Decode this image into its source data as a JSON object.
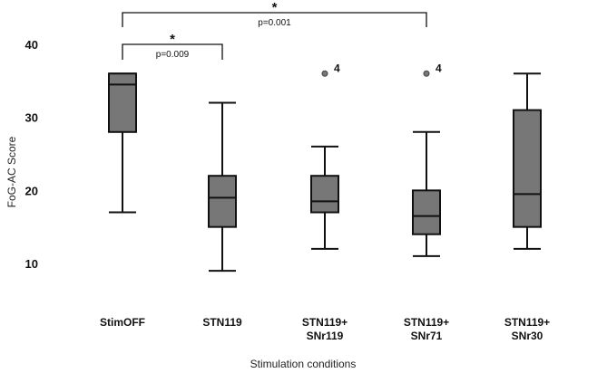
{
  "chart_data": {
    "type": "boxplot",
    "xlabel": "Stimulation conditions",
    "ylabel": "FoG-AC Score",
    "ylim": [
      5,
      41
    ],
    "yticks": [
      10,
      20,
      30,
      40
    ],
    "fill_color": "#777777",
    "stroke_color": "#111111",
    "categories": [
      {
        "label_lines": [
          "StimOFF"
        ],
        "min": 17,
        "q1": 28,
        "median": 34.5,
        "q3": 36,
        "max": 36,
        "outliers": []
      },
      {
        "label_lines": [
          "STN119"
        ],
        "min": 9,
        "q1": 15,
        "median": 19,
        "q3": 22,
        "max": 32,
        "outliers": []
      },
      {
        "label_lines": [
          "STN119+",
          "SNr119"
        ],
        "min": 12,
        "q1": 17,
        "median": 18.5,
        "q3": 22,
        "max": 26,
        "outliers": [
          {
            "value": 36,
            "label": "4"
          }
        ]
      },
      {
        "label_lines": [
          "STN119+",
          "SNr71"
        ],
        "min": 11,
        "q1": 14,
        "median": 16.5,
        "q3": 20,
        "max": 28,
        "outliers": [
          {
            "value": 36,
            "label": "4"
          }
        ]
      },
      {
        "label_lines": [
          "STN119+",
          "SNr30"
        ],
        "min": 12,
        "q1": 15,
        "median": 19.5,
        "q3": 31,
        "max": 36,
        "outliers": []
      }
    ],
    "significance": [
      {
        "from": 0,
        "to": 1,
        "level": 0,
        "star": "*",
        "p_text": "p=0.009"
      },
      {
        "from": 0,
        "to": 3,
        "level": 1,
        "star": "*",
        "p_text": "p=0.001"
      }
    ]
  }
}
